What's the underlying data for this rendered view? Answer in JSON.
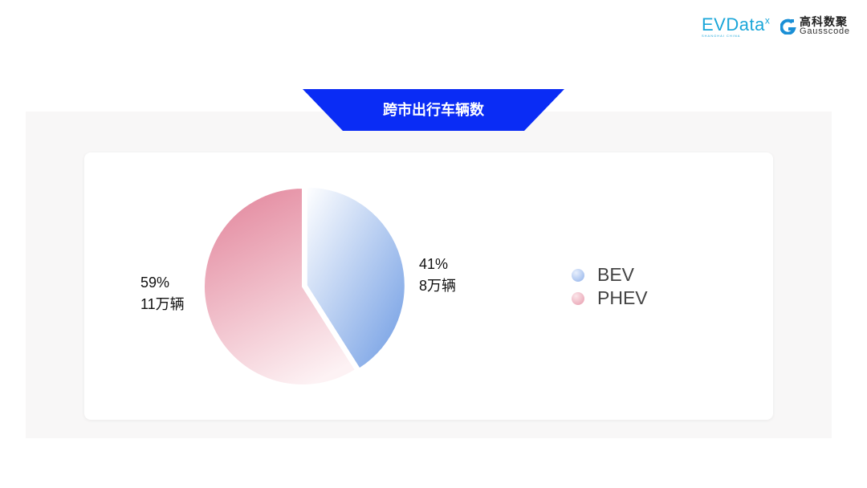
{
  "logos": {
    "evdata": "EVData",
    "evdata_sub": "SHANGHAI CHINA",
    "gauss_cn": "高科数聚",
    "gauss_en": "Gausscode"
  },
  "colors": {
    "banner": "#0a2cf5",
    "bev": "#7ba3e6",
    "phev": "#e48ea2"
  },
  "chart_data": {
    "type": "pie",
    "title": "跨市出行车辆数",
    "series": [
      {
        "name": "BEV",
        "value": 41,
        "label_pct": "41%",
        "label_count": "8万辆"
      },
      {
        "name": "PHEV",
        "value": 59,
        "label_pct": "59%",
        "label_count": "11万辆"
      }
    ],
    "legend_position": "right"
  }
}
